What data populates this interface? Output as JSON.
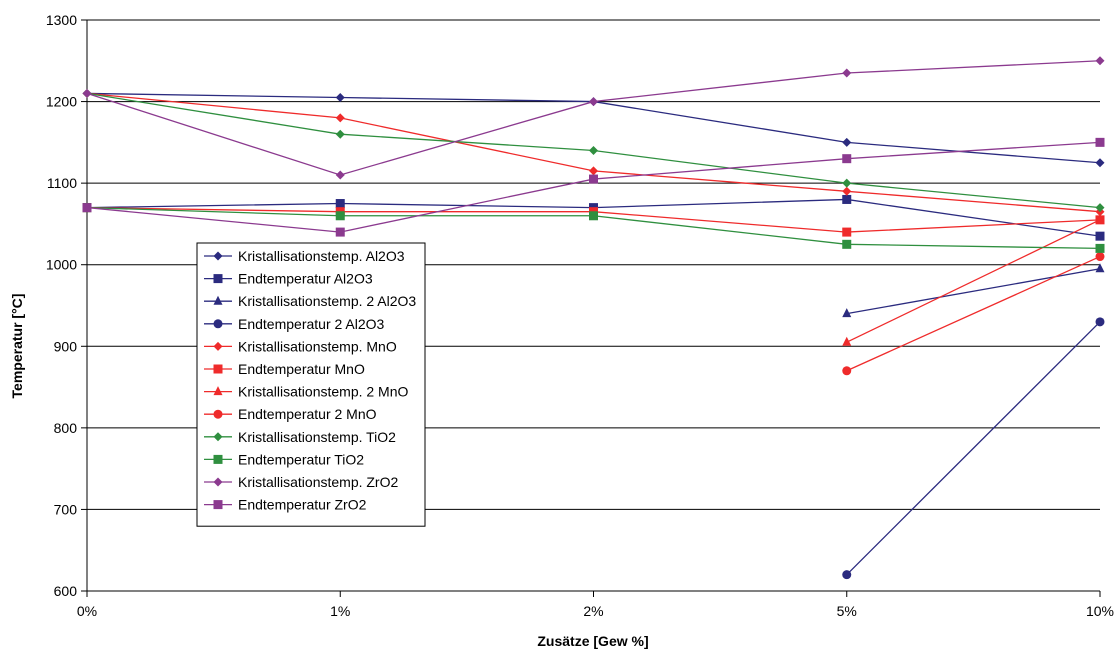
{
  "chart_data": {
    "type": "line",
    "title": "",
    "xlabel": "Zusätze [Gew %]",
    "ylabel": "Temperatur [°C]",
    "categories": [
      "0%",
      "1%",
      "2%",
      "5%",
      "10%"
    ],
    "ylim": [
      600,
      1300
    ],
    "yticks": [
      600,
      700,
      800,
      900,
      1000,
      1100,
      1200,
      1300
    ],
    "grid": "horizontal",
    "legend_position": "left-inside",
    "series": [
      {
        "name": "Kristallisationstemp. Al2O3",
        "color": "#2b2b7f",
        "marker": "diamond",
        "values": [
          1210,
          1205,
          1200,
          1150,
          1125
        ]
      },
      {
        "name": "Endtemperatur Al2O3",
        "color": "#2b2b7f",
        "marker": "square",
        "values": [
          1070,
          1075,
          1070,
          1080,
          1035
        ]
      },
      {
        "name": "Kristallisationstemp. 2 Al2O3",
        "color": "#2b2b7f",
        "marker": "triangle",
        "values": [
          null,
          null,
          null,
          940,
          995
        ]
      },
      {
        "name": "Endtemperatur 2 Al2O3",
        "color": "#2b2b7f",
        "marker": "circle",
        "values": [
          null,
          null,
          null,
          620,
          930
        ]
      },
      {
        "name": "Kristallisationstemp. MnO",
        "color": "#ef2b2b",
        "marker": "diamond",
        "values": [
          1210,
          1180,
          1115,
          1090,
          1065
        ]
      },
      {
        "name": "Endtemperatur MnO",
        "color": "#ef2b2b",
        "marker": "square",
        "values": [
          1070,
          1065,
          1065,
          1040,
          1055
        ]
      },
      {
        "name": "Kristallisationstemp. 2 MnO",
        "color": "#ef2b2b",
        "marker": "triangle",
        "values": [
          null,
          null,
          null,
          905,
          1055
        ]
      },
      {
        "name": "Endtemperatur 2 MnO",
        "color": "#ef2b2b",
        "marker": "circle",
        "values": [
          null,
          null,
          null,
          870,
          1010
        ]
      },
      {
        "name": "Kristallisationstemp. TiO2",
        "color": "#2f8f3f",
        "marker": "diamond",
        "values": [
          1210,
          1160,
          1140,
          1100,
          1070
        ]
      },
      {
        "name": "Endtemperatur TiO2",
        "color": "#2f8f3f",
        "marker": "square",
        "values": [
          1070,
          1060,
          1060,
          1025,
          1020
        ]
      },
      {
        "name": "Kristallisationstemp. ZrO2",
        "color": "#8b3a8f",
        "marker": "diamond",
        "values": [
          1210,
          1110,
          1200,
          1235,
          1250
        ]
      },
      {
        "name": "Endtemperatur ZrO2",
        "color": "#8b3a8f",
        "marker": "square",
        "values": [
          1070,
          1040,
          1105,
          1130,
          1150
        ]
      }
    ]
  }
}
